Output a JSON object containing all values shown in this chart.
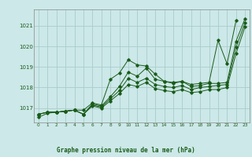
{
  "title": "Graphe pression niveau de la mer (hPa)",
  "bg_color": "#cce8e8",
  "grid_color": "#aacccc",
  "line_color": "#1a5c1a",
  "x_ticks": [
    0,
    1,
    2,
    3,
    4,
    5,
    6,
    7,
    8,
    9,
    10,
    11,
    12,
    13,
    14,
    15,
    16,
    17,
    18,
    19,
    20,
    21,
    22,
    23
  ],
  "y_ticks": [
    1017,
    1018,
    1019,
    1020,
    1021
  ],
  "ylim": [
    1016.3,
    1021.8
  ],
  "xlim": [
    -0.5,
    23.5
  ],
  "series": [
    [
      1016.55,
      1016.75,
      1016.8,
      1016.85,
      1016.9,
      1016.9,
      1017.25,
      1017.15,
      1018.4,
      1018.7,
      1019.35,
      1019.1,
      1019.05,
      1018.65,
      1018.3,
      1018.25,
      1018.3,
      1018.15,
      1018.2,
      1018.25,
      1020.3,
      1019.15,
      1021.25,
      null
    ],
    [
      1016.7,
      1016.8,
      1016.8,
      1016.85,
      1016.9,
      1016.7,
      1017.2,
      1017.1,
      1017.55,
      1018.05,
      1018.75,
      1018.55,
      1018.95,
      1018.4,
      1018.3,
      1018.2,
      1018.3,
      1018.05,
      1018.1,
      1018.2,
      1018.2,
      1018.25,
      1020.25,
      1021.35
    ],
    [
      1016.7,
      1016.8,
      1016.8,
      1016.85,
      1016.9,
      1016.7,
      1017.15,
      1017.05,
      1017.45,
      1017.85,
      1018.45,
      1018.25,
      1018.45,
      1018.15,
      1018.05,
      1018.0,
      1018.1,
      1017.9,
      1018.0,
      1018.05,
      1018.1,
      1018.15,
      1019.95,
      1021.15
    ],
    [
      1016.7,
      1016.8,
      1016.8,
      1016.85,
      1016.9,
      1016.7,
      1017.1,
      1017.0,
      1017.35,
      1017.7,
      1018.15,
      1018.05,
      1018.25,
      1017.95,
      1017.85,
      1017.8,
      1017.9,
      1017.75,
      1017.8,
      1017.9,
      1017.9,
      1018.0,
      1019.65,
      1020.95
    ]
  ]
}
